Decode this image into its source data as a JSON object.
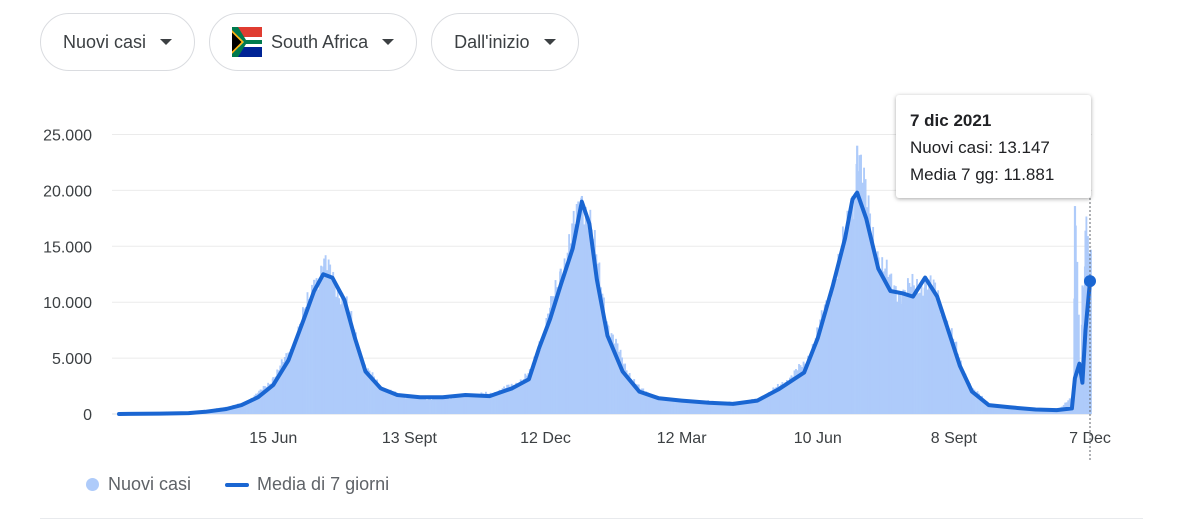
{
  "filters": {
    "metric": "Nuovi casi",
    "country": "South Africa",
    "period": "Dall'inizio"
  },
  "tooltip": {
    "date": "7 dic 2021",
    "cases_label": "Nuovi casi: 13.147",
    "avg_label": "Media 7 gg: 11.881"
  },
  "legend": {
    "bars": "Nuovi casi",
    "line": "Media di 7 giorni"
  },
  "colors": {
    "bars": "#aecbfa",
    "line": "#1a66d2",
    "grid": "#ebebeb",
    "flag_green": "#007a4d",
    "flag_red": "#e03c31",
    "flag_blue": "#002395",
    "flag_gold": "#ffb612"
  },
  "icons": {
    "caret": "caret-down-icon",
    "flag": "south-africa-flag-icon"
  },
  "chart_data": {
    "type": "bar",
    "title": "",
    "xlabel": "",
    "ylabel": "",
    "ylim": [
      0,
      27000
    ],
    "y_ticks": [
      0,
      5000,
      10000,
      15000,
      20000,
      25000
    ],
    "y_tick_labels": [
      "0",
      "5.000",
      "10.000",
      "15.000",
      "20.000",
      "25.000"
    ],
    "x_ticks": [
      "2020-06-15",
      "2020-09-13",
      "2020-12-12",
      "2021-03-12",
      "2021-06-10",
      "2021-09-08",
      "2021-12-07"
    ],
    "x_tick_labels": [
      "15 Jun",
      "13 Sept",
      "12 Dec",
      "12 Mar",
      "10 Jun",
      "8 Sept",
      "7 Dec"
    ],
    "x_range": [
      "2020-03-05",
      "2021-12-07"
    ],
    "grid": true,
    "legend_position": "bottom-left",
    "series": [
      {
        "name": "Nuovi casi",
        "type": "bar",
        "points": [
          [
            "2020-03-05",
            1
          ],
          [
            "2020-04-01",
            80
          ],
          [
            "2020-04-20",
            150
          ],
          [
            "2020-05-01",
            300
          ],
          [
            "2020-05-15",
            650
          ],
          [
            "2020-05-25",
            900
          ],
          [
            "2020-06-05",
            1900
          ],
          [
            "2020-06-15",
            3300
          ],
          [
            "2020-06-25",
            5500
          ],
          [
            "2020-07-05",
            9000
          ],
          [
            "2020-07-12",
            12000
          ],
          [
            "2020-07-18",
            13200
          ],
          [
            "2020-07-24",
            12200
          ],
          [
            "2020-08-01",
            10000
          ],
          [
            "2020-08-08",
            7000
          ],
          [
            "2020-08-15",
            4000
          ],
          [
            "2020-08-25",
            2400
          ],
          [
            "2020-09-05",
            1700
          ],
          [
            "2020-09-20",
            1400
          ],
          [
            "2020-10-05",
            1400
          ],
          [
            "2020-10-20",
            1700
          ],
          [
            "2020-11-05",
            1800
          ],
          [
            "2020-11-20",
            2600
          ],
          [
            "2020-12-01",
            3600
          ],
          [
            "2020-12-08",
            6500
          ],
          [
            "2020-12-15",
            9500
          ],
          [
            "2020-12-22",
            13000
          ],
          [
            "2020-12-30",
            16500
          ],
          [
            "2021-01-05",
            19500
          ],
          [
            "2021-01-10",
            17500
          ],
          [
            "2021-01-15",
            13000
          ],
          [
            "2021-01-22",
            8000
          ],
          [
            "2021-02-01",
            4500
          ],
          [
            "2021-02-12",
            2200
          ],
          [
            "2021-02-25",
            1400
          ],
          [
            "2021-03-12",
            1200
          ],
          [
            "2021-03-30",
            1100
          ],
          [
            "2021-04-15",
            1000
          ],
          [
            "2021-05-01",
            1300
          ],
          [
            "2021-05-15",
            2500
          ],
          [
            "2021-06-01",
            4500
          ],
          [
            "2021-06-10",
            7500
          ],
          [
            "2021-06-20",
            12000
          ],
          [
            "2021-06-28",
            16000
          ],
          [
            "2021-07-03",
            19500
          ],
          [
            "2021-07-06",
            24000
          ],
          [
            "2021-07-12",
            18500
          ],
          [
            "2021-07-20",
            14000
          ],
          [
            "2021-07-28",
            11500
          ],
          [
            "2021-08-05",
            11000
          ],
          [
            "2021-08-12",
            11300
          ],
          [
            "2021-08-20",
            12000
          ],
          [
            "2021-08-28",
            10500
          ],
          [
            "2021-09-05",
            7500
          ],
          [
            "2021-09-12",
            4500
          ],
          [
            "2021-09-20",
            2200
          ],
          [
            "2021-10-01",
            900
          ],
          [
            "2021-10-15",
            600
          ],
          [
            "2021-11-01",
            400
          ],
          [
            "2021-11-15",
            350
          ],
          [
            "2021-11-25",
            1500
          ],
          [
            "2021-11-27",
            18600
          ],
          [
            "2021-11-30",
            4500
          ],
          [
            "2021-12-02",
            11500
          ],
          [
            "2021-12-04",
            16400
          ],
          [
            "2021-12-07",
            13147
          ]
        ]
      },
      {
        "name": "Media di 7 giorni",
        "type": "line",
        "points": [
          [
            "2020-03-05",
            0
          ],
          [
            "2020-04-01",
            40
          ],
          [
            "2020-04-20",
            80
          ],
          [
            "2020-05-01",
            200
          ],
          [
            "2020-05-15",
            450
          ],
          [
            "2020-05-25",
            800
          ],
          [
            "2020-06-05",
            1500
          ],
          [
            "2020-06-15",
            2600
          ],
          [
            "2020-06-25",
            4800
          ],
          [
            "2020-07-05",
            8400
          ],
          [
            "2020-07-12",
            11000
          ],
          [
            "2020-07-18",
            12500
          ],
          [
            "2020-07-24",
            12200
          ],
          [
            "2020-08-01",
            10200
          ],
          [
            "2020-08-08",
            6800
          ],
          [
            "2020-08-15",
            3800
          ],
          [
            "2020-08-25",
            2300
          ],
          [
            "2020-09-05",
            1700
          ],
          [
            "2020-09-20",
            1500
          ],
          [
            "2020-10-05",
            1500
          ],
          [
            "2020-10-20",
            1700
          ],
          [
            "2020-11-05",
            1600
          ],
          [
            "2020-11-20",
            2300
          ],
          [
            "2020-12-01",
            3100
          ],
          [
            "2020-12-08",
            6000
          ],
          [
            "2020-12-15",
            8500
          ],
          [
            "2020-12-22",
            11500
          ],
          [
            "2020-12-30",
            14800
          ],
          [
            "2021-01-05",
            19000
          ],
          [
            "2021-01-10",
            17000
          ],
          [
            "2021-01-15",
            12000
          ],
          [
            "2021-01-22",
            7000
          ],
          [
            "2021-02-01",
            3800
          ],
          [
            "2021-02-12",
            2000
          ],
          [
            "2021-02-25",
            1400
          ],
          [
            "2021-03-12",
            1200
          ],
          [
            "2021-03-30",
            1000
          ],
          [
            "2021-04-15",
            900
          ],
          [
            "2021-05-01",
            1200
          ],
          [
            "2021-05-15",
            2200
          ],
          [
            "2021-06-01",
            3700
          ],
          [
            "2021-06-10",
            6800
          ],
          [
            "2021-06-20",
            11500
          ],
          [
            "2021-06-28",
            15700
          ],
          [
            "2021-07-03",
            19200
          ],
          [
            "2021-07-06",
            19800
          ],
          [
            "2021-07-12",
            17500
          ],
          [
            "2021-07-20",
            13000
          ],
          [
            "2021-07-28",
            11000
          ],
          [
            "2021-08-05",
            10800
          ],
          [
            "2021-08-12",
            10500
          ],
          [
            "2021-08-20",
            12200
          ],
          [
            "2021-08-28",
            10500
          ],
          [
            "2021-09-05",
            7200
          ],
          [
            "2021-09-12",
            4300
          ],
          [
            "2021-09-20",
            2000
          ],
          [
            "2021-10-01",
            800
          ],
          [
            "2021-10-15",
            600
          ],
          [
            "2021-11-01",
            400
          ],
          [
            "2021-11-15",
            350
          ],
          [
            "2021-11-25",
            500
          ],
          [
            "2021-11-27",
            3200
          ],
          [
            "2021-11-30",
            4500
          ],
          [
            "2021-12-02",
            2800
          ],
          [
            "2021-12-04",
            7500
          ],
          [
            "2021-12-07",
            11881
          ]
        ]
      }
    ]
  }
}
